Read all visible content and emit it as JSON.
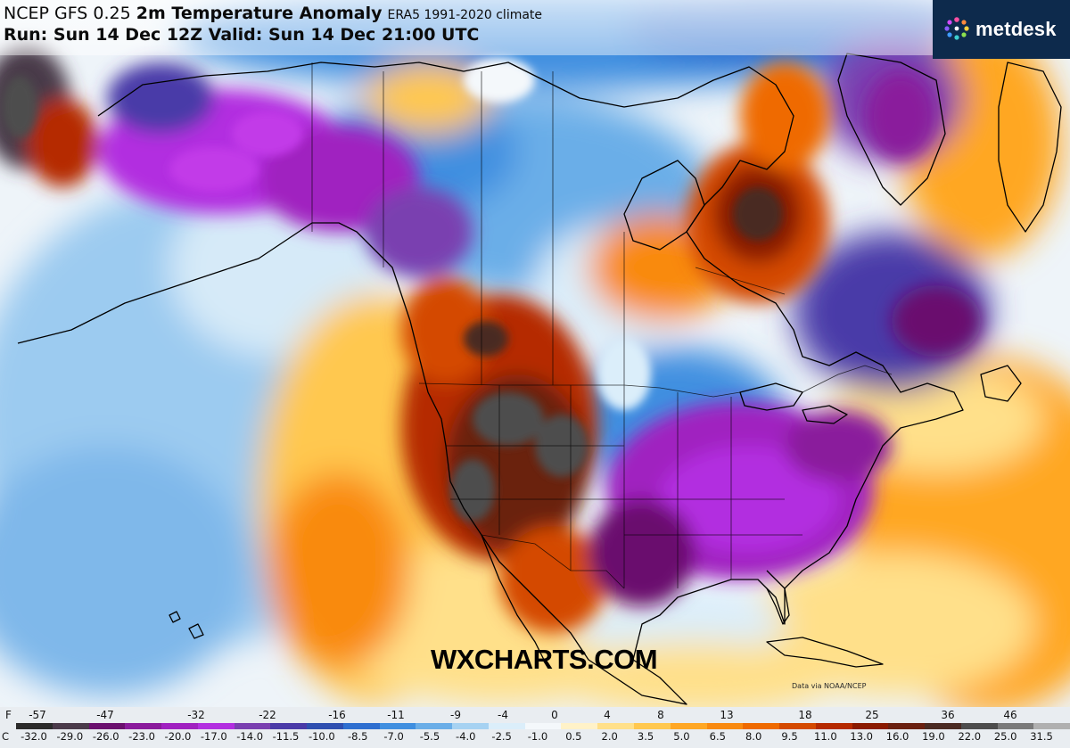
{
  "header": {
    "model": "NCEP GFS 0.25",
    "variable": "2m Temperature Anomaly",
    "climate": "ERA5 1991-2020 climate",
    "run_label": "Run: Sun 14 Dec 12Z Valid: Sun 14 Dec 21:00 UTC"
  },
  "brand": {
    "name": "metdesk",
    "icon": "metdesk-starburst-logo-icon",
    "background": "#0d2a4c"
  },
  "watermark": "WXCHARTS.COM",
  "credit": "Data via NOAA/NCEP",
  "legend": {
    "unit_f": "F",
    "unit_c": "C",
    "f_ticks": [
      "-57",
      "-47",
      "-32",
      "-22",
      "-16",
      "-11",
      "-9",
      "-4",
      "0",
      "4",
      "8",
      "13",
      "18",
      "25",
      "36",
      "46"
    ],
    "c_ticks": [
      "-32.0",
      "-29.0",
      "-26.0",
      "-23.0",
      "-20.0",
      "-17.0",
      "-14.0",
      "-11.5",
      "-10.0",
      "-8.5",
      "-7.0",
      "-5.5",
      "-4.0",
      "-2.5",
      "-1.0",
      "0.5",
      "2.0",
      "3.5",
      "5.0",
      "6.5",
      "8.0",
      "9.5",
      "11.0",
      "13.0",
      "16.0",
      "19.0",
      "22.0",
      "25.0",
      "31.5"
    ],
    "colors": [
      "#2b2b2b",
      "#4a3a4a",
      "#6a0f6e",
      "#8a1a9c",
      "#a020c0",
      "#b22ee0",
      "#7a3fb0",
      "#4a3aa8",
      "#2f4fb0",
      "#2f6fd0",
      "#3f8fe0",
      "#6aaee8",
      "#a6d2f2",
      "#dbeefa",
      "#f4f8fb",
      "#fff2c8",
      "#ffe08a",
      "#ffc84f",
      "#ffa724",
      "#f98a10",
      "#ef6a00",
      "#d44a00",
      "#b52a00",
      "#8a1a00",
      "#6a2010",
      "#4a2a22",
      "#4d4d4d",
      "#7a7a7a",
      "#b0b0b0"
    ]
  },
  "map_colors": {
    "deep_cold": "#a020c0",
    "cold": "#2f6fd0",
    "cool": "#9ccbf0",
    "neutral": "#f3f6f9",
    "warm": "#ffc84f",
    "hot": "#ef6a00",
    "very_hot": "#8a1a00",
    "extreme": "#4d4d4d",
    "land_outline": "#000000"
  }
}
